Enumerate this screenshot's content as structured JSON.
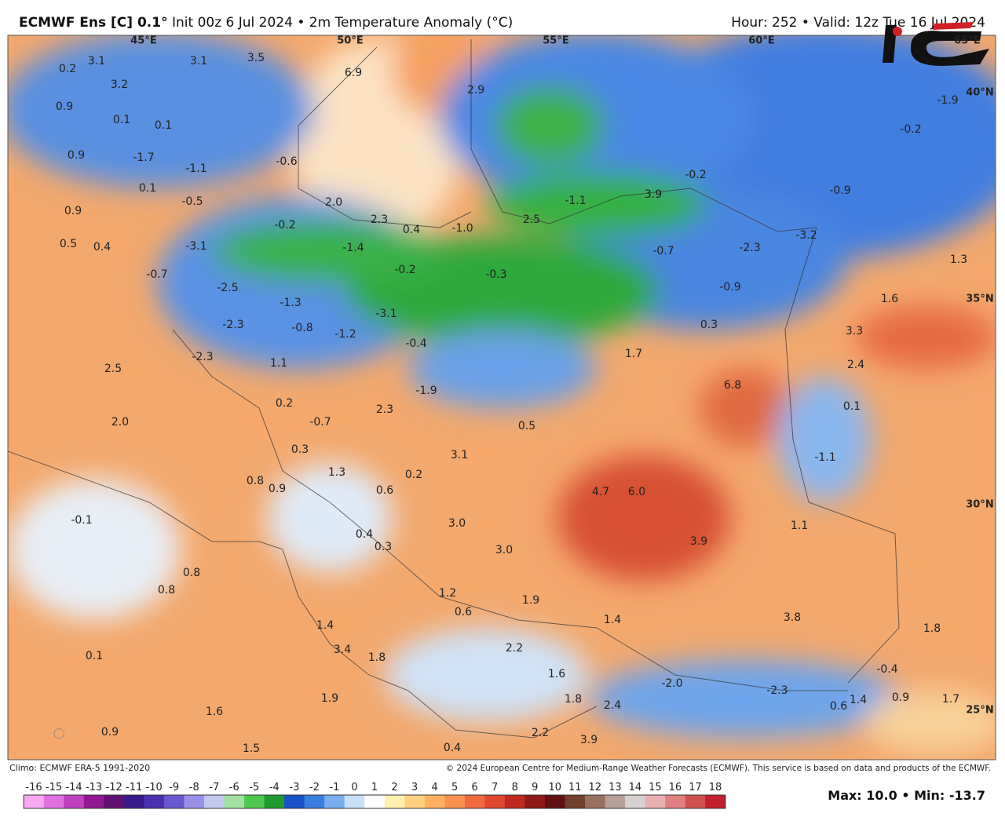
{
  "header": {
    "model": "ECMWF Ens [C] 0.1°",
    "description": "Init 00z 6 Jul 2024 • 2m Temperature Anomaly (°C)",
    "valid": "Hour: 252 • Valid: 12z Tue 16 Jul 2024"
  },
  "map": {
    "lon_labels": [
      "45°E",
      "50°E",
      "55°E",
      "60°E",
      "65°E"
    ],
    "lat_labels": [
      "40°N",
      "35°N",
      "30°N",
      "25°N"
    ],
    "labels": [
      "3.1",
      "0.2",
      "3.2",
      "0.9",
      "0.1",
      "0.1",
      "0.9",
      "-1.7",
      "-1.1",
      "-0.6",
      "0.1",
      "-0.5",
      "0.9",
      "0.5",
      "0.4",
      "-3.1",
      "-0.7",
      "-2.5",
      "-1.3",
      "-2.3",
      "-0.8",
      "-1.2",
      "-2.3",
      "1.1",
      "2.5",
      "0.2",
      "-0.7",
      "2.0",
      "0.3",
      "0.8",
      "0.9",
      "1.3",
      "-0.1",
      "0.6",
      "0.2",
      "2.3",
      "-1.9",
      "-3.1",
      "-0.4",
      "-1.4",
      "-0.2",
      "-0.3",
      "-0.2",
      "2.0",
      "2.3",
      "0.4",
      "-1.0",
      "2.5",
      "-1.1",
      "3.9",
      "-0.2",
      "-0.7",
      "-0.9",
      "-2.3",
      "-3.2",
      "-0.9",
      "-0.2",
      "-1.9",
      "2.9",
      "6.9",
      "3.5",
      "3.1",
      "0.3",
      "1.7",
      "6.8",
      "3.3",
      "1.6",
      "1.3",
      "2.4",
      "0.1",
      "-1.1",
      "0.5",
      "3.1",
      "4.7",
      "6.0",
      "3.9",
      "1.1",
      "3.0",
      "3.0",
      "0.4",
      "0.3",
      "0.8",
      "0.8",
      "1.2",
      "0.6",
      "1.9",
      "1.4",
      "3.8",
      "1.8",
      "1.4",
      "3.4",
      "1.8",
      "2.2",
      "0.1",
      "1.6",
      "-2.0",
      "-0.4",
      "-2.3",
      "0.6",
      "1.4",
      "0.9",
      "1.7",
      "1.9",
      "1.8",
      "2.4",
      "1.6",
      "0.9",
      "2.2",
      "3.9",
      "0.4",
      "1.5"
    ]
  },
  "footer": {
    "climo": "Climo: ECMWF ERA-5 1991-2020",
    "copyright": "© 2024 European Centre for Medium-Range Weather Forecasts (ECMWF). This service is based on data and products of the ECMWF.",
    "extremes": "Max: 10.0 • Min: -13.7"
  },
  "colorbar": {
    "ticks": [
      -16,
      -15,
      -14,
      -13,
      -12,
      -11,
      -10,
      -9,
      -8,
      -7,
      -6,
      -5,
      -4,
      -3,
      -2,
      -1,
      0,
      1,
      2,
      3,
      4,
      5,
      6,
      7,
      8,
      9,
      10,
      11,
      12,
      13,
      14,
      15,
      16,
      17,
      18
    ],
    "colors": [
      "#f7a8f0",
      "#e070e0",
      "#c040c0",
      "#901890",
      "#601070",
      "#3a1a8a",
      "#4a30b0",
      "#6a58d0",
      "#9a90e8",
      "#c0c8f0",
      "#a0e0a0",
      "#50c850",
      "#1e9a2e",
      "#1a50c8",
      "#3a7ee0",
      "#78aef0",
      "#c8e0f8",
      "#ffffff",
      "#fff0b0",
      "#ffd080",
      "#ffb060",
      "#f89050",
      "#f06a40",
      "#e04830",
      "#c02820",
      "#901818",
      "#601010",
      "#70402a",
      "#987060",
      "#b8a098",
      "#d8d0d0",
      "#e8b0b0",
      "#e08080",
      "#d05050",
      "#c02030"
    ]
  }
}
